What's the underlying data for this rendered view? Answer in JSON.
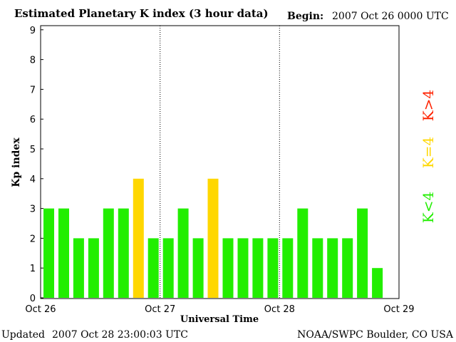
{
  "header": {
    "title": "Estimated Planetary K index (3 hour data)",
    "begin_label": "Begin:",
    "begin_value": "2007 Oct 26 0000 UTC"
  },
  "footer": {
    "updated_label": "Updated",
    "updated_value": "2007 Oct 28 23:00:03 UTC",
    "source": "NOAA/SWPC Boulder, CO USA"
  },
  "legend": {
    "high": "K>4",
    "equal": "K=4",
    "low": "K<4"
  },
  "colors": {
    "low": "#22ee00",
    "equal": "#ffd700",
    "high": "#ff2200",
    "axis": "#000000",
    "background": "#ffffff"
  },
  "chart_data": {
    "type": "bar",
    "title": "Estimated Planetary K index (3 hour data)",
    "xlabel": "Universal Time",
    "ylabel": "Kp index",
    "ylim": [
      0,
      9
    ],
    "y_ticks": [
      "0",
      "1",
      "2",
      "3",
      "4",
      "5",
      "6",
      "7",
      "8",
      "9"
    ],
    "x_ticks": [
      "Oct 26",
      "Oct 27",
      "Oct 28",
      "Oct 29"
    ],
    "bars_per_day": 8,
    "values": [
      3,
      3,
      2,
      2,
      3,
      3,
      4,
      2,
      2,
      3,
      2,
      4,
      2,
      2,
      2,
      2,
      2,
      3,
      2,
      2,
      2,
      3,
      1
    ],
    "grid": "dotted vertical lines at day boundaries"
  }
}
